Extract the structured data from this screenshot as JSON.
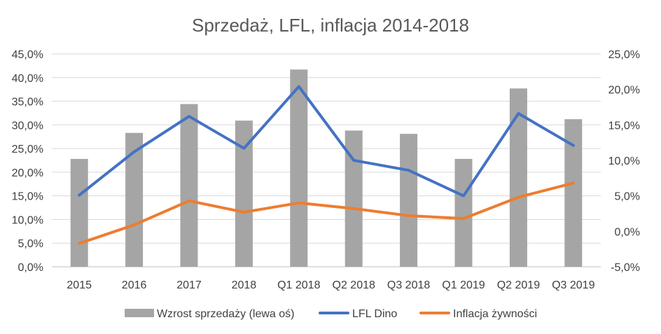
{
  "chart_data": {
    "type": "bar+line",
    "title": "Sprzedaż, LFL, inflacja 2014-2018",
    "categories": [
      "2015",
      "2016",
      "2017",
      "2018",
      "Q1 2018",
      "Q2 2018",
      "Q3 2018",
      "Q1 2019",
      "Q2 2019",
      "Q3 2019"
    ],
    "left_axis": {
      "ylim": [
        0,
        45
      ],
      "ticks": [
        "0,0%",
        "5,0%",
        "10,0%",
        "15,0%",
        "20,0%",
        "25,0%",
        "30,0%",
        "35,0%",
        "40,0%",
        "45,0%"
      ]
    },
    "right_axis": {
      "ylim": [
        -5,
        25
      ],
      "ticks": [
        "-5,0%",
        "0,0%",
        "5,0%",
        "10,0%",
        "15,0%",
        "20,0%",
        "25,0%"
      ]
    },
    "grid": true,
    "legend_position": "bottom",
    "series": [
      {
        "name": "Wzrost sprzedaży (lewa oś)",
        "type": "bar",
        "axis": "left",
        "color": "#a5a5a5",
        "values": [
          22.8,
          28.3,
          34.4,
          30.9,
          41.7,
          28.8,
          28.1,
          22.8,
          37.7,
          31.2
        ]
      },
      {
        "name": "LFL Dino",
        "type": "line",
        "axis": "right",
        "color": "#4472c4",
        "values": [
          5.1,
          11.2,
          16.2,
          11.7,
          20.4,
          10.0,
          8.6,
          5.0,
          16.6,
          12.1
        ]
      },
      {
        "name": "Inflacja żywności",
        "type": "line",
        "axis": "right",
        "color": "#ed7d31",
        "values": [
          -1.7,
          0.9,
          4.3,
          2.7,
          4.0,
          3.2,
          2.2,
          1.8,
          4.8,
          6.8
        ]
      }
    ]
  }
}
